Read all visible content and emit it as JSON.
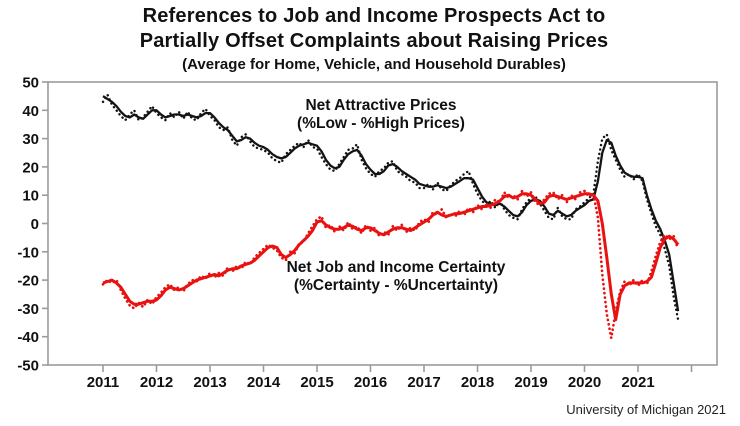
{
  "title": {
    "line1": "References to Job and Income Prospects Act to",
    "line2": "Partially Offset Complaints about Raising Prices",
    "line3": "(Average for Home, Vehicle, and Household Durables)"
  },
  "footer": {
    "source": "University of Michigan 2021"
  },
  "chart_data": {
    "type": "line",
    "title": "References to Job and Income Prospects Act to Partially Offset Complaints about Raising Prices",
    "subtitle": "(Average for Home, Vehicle, and Household Durables)",
    "source": "University of Michigan 2021",
    "x_start": "2011-01",
    "x_step_months": 1,
    "xticks": [
      "2011",
      "2012",
      "2013",
      "2014",
      "2015",
      "2016",
      "2017",
      "2018",
      "2019",
      "2020",
      "2021"
    ],
    "extra_unlabeled_tick_years": [
      2022
    ],
    "yticks": [
      50,
      40,
      30,
      20,
      10,
      0,
      -10,
      -20,
      -30,
      -40,
      -50
    ],
    "ylim": [
      -50,
      50
    ],
    "grid": false,
    "legend": "none",
    "axis_color": "#9b9b9b",
    "annotations": [
      {
        "lines": [
          "Net Attractive Prices",
          "(%Low - %High Prices)"
        ],
        "color": "#111111"
      },
      {
        "lines": [
          "Net Job and Income Certainty",
          "(%Certainty - %Uncertainty)"
        ],
        "color": "#111111"
      }
    ],
    "series": [
      {
        "name": "Net Attractive Prices (%Low - %High Prices) — monthly (dotted)",
        "color": "#141414",
        "style": "dotted",
        "width": 2.4,
        "values": [
          43,
          45.5,
          42,
          40,
          38,
          36.5,
          38.5,
          40,
          36.5,
          37.5,
          39.5,
          41.5,
          39,
          37.5,
          36.5,
          39,
          37.5,
          39.5,
          37,
          39.5,
          37,
          36.5,
          39,
          40.5,
          38,
          36.5,
          34,
          33,
          34,
          29.5,
          27.5,
          30.5,
          31.5,
          29,
          27,
          26.5,
          26,
          25,
          23,
          22,
          21.5,
          24.5,
          26,
          27.5,
          28.5,
          27,
          29.5,
          27,
          26.5,
          23.5,
          21,
          19,
          18.5,
          21,
          23.5,
          26,
          26.5,
          28,
          22.5,
          19.5,
          17.5,
          16.5,
          18.5,
          19.5,
          21.5,
          22,
          18.5,
          17.5,
          16.5,
          15,
          14.5,
          12.5,
          12.5,
          14,
          12,
          14.5,
          12,
          11.5,
          13.5,
          15,
          16,
          17.5,
          18.5,
          14,
          10.5,
          8,
          6.5,
          8,
          5.5,
          8,
          5,
          3,
          2,
          1.5,
          5,
          7.5,
          9,
          9.5,
          7,
          4.5,
          2,
          1.5,
          5.5,
          2.5,
          1.5,
          1.5,
          5,
          6,
          7.5,
          9,
          10.5,
          22,
          30,
          31.5,
          26,
          22.5,
          19,
          16.5,
          17.5,
          15.5,
          17.5,
          15,
          8.5,
          3.5,
          -1,
          -4,
          -9,
          -15,
          -26,
          -34
        ]
      },
      {
        "name": "Net Attractive Prices (%Low - %High Prices) — smoothed (solid)",
        "color": "#141414",
        "style": "solid",
        "width": 2.3,
        "values": [
          45,
          44,
          43,
          41.5,
          39.5,
          38,
          37.5,
          38.5,
          37.5,
          37,
          38.5,
          40,
          40,
          38.5,
          37.5,
          38,
          38.5,
          38.5,
          38,
          38.5,
          38,
          37.5,
          38,
          39,
          39,
          37.5,
          35.5,
          34,
          33,
          31,
          29,
          29.5,
          30.5,
          30,
          28.5,
          27.5,
          27,
          26,
          24.5,
          23.5,
          23,
          23.5,
          25,
          26.5,
          27.5,
          28,
          28.5,
          28,
          27.5,
          25.5,
          22.5,
          20.5,
          19.5,
          20,
          22.5,
          24.5,
          25.5,
          26,
          24,
          21,
          19,
          17.5,
          17.5,
          18.5,
          20.5,
          21,
          20,
          18.5,
          17.5,
          16.5,
          15.5,
          14,
          13.5,
          13,
          13,
          13.5,
          13,
          12.5,
          13,
          14,
          15,
          16,
          16,
          15.5,
          12.5,
          9.5,
          7.5,
          7,
          6.5,
          7,
          6,
          4.5,
          3,
          2.5,
          4,
          6.5,
          8,
          8.5,
          8,
          6,
          3.5,
          3,
          4.5,
          3.5,
          2.5,
          3,
          4.5,
          5.5,
          6.5,
          8,
          8.5,
          15,
          25,
          29.5,
          28.5,
          24,
          20.5,
          18,
          17,
          16.5,
          16.5,
          16,
          10,
          5,
          1,
          -2,
          -6,
          -11,
          -21,
          -31
        ]
      },
      {
        "name": "Net Job and Income Certainty (%Certainty - %Uncertainty) — monthly (dotted)",
        "color": "#ea1111",
        "style": "dotted",
        "width": 2.7,
        "values": [
          -21.5,
          -20,
          -21,
          -20,
          -23.5,
          -26.5,
          -29,
          -30,
          -28,
          -29.5,
          -27,
          -28.5,
          -26,
          -24.5,
          -22.5,
          -21.5,
          -23.5,
          -22.5,
          -24,
          -21.5,
          -20,
          -20.5,
          -18.5,
          -19.5,
          -17.5,
          -19,
          -17.5,
          -18.5,
          -15.5,
          -17,
          -15,
          -16,
          -13.5,
          -14.5,
          -12,
          -10.5,
          -9,
          -7.5,
          -8.5,
          -9.5,
          -12,
          -13,
          -10,
          -10.5,
          -7,
          -6.5,
          -3.5,
          -1,
          1.5,
          2.5,
          -1.5,
          -0.5,
          -3,
          -1,
          -2.5,
          0.5,
          -2,
          -1,
          -3.5,
          -0.5,
          -2.5,
          -1.5,
          -4.5,
          -3,
          -4,
          -1,
          -2.5,
          -0.5,
          -3,
          -1.5,
          -2.5,
          0.5,
          1.5,
          0.5,
          4,
          3,
          5,
          2,
          3.5,
          2.5,
          4.5,
          3,
          5.5,
          4,
          6.5,
          5,
          7,
          5.5,
          8.5,
          7.5,
          11,
          9,
          10,
          8.5,
          11.5,
          9.5,
          11,
          7.5,
          6.5,
          8.5,
          10.5,
          11,
          8.5,
          10,
          7.5,
          10,
          8.5,
          11,
          11.5,
          9.5,
          10.5,
          2,
          -18,
          -32,
          -40.5,
          -31,
          -24,
          -20.5,
          -22,
          -20,
          -22,
          -20,
          -21.5,
          -17,
          -11.5,
          -6.5,
          -4,
          -5.5,
          -4.5,
          -9
        ]
      },
      {
        "name": "Net Job and Income Certainty (%Certainty - %Uncertainty) — smoothed (solid)",
        "color": "#ea1111",
        "style": "solid",
        "width": 3,
        "values": [
          -21,
          -20.5,
          -20,
          -21,
          -22.5,
          -25,
          -27.5,
          -28.5,
          -28.5,
          -28,
          -27.5,
          -27.5,
          -27,
          -25.5,
          -23.5,
          -22.5,
          -23,
          -23.5,
          -23,
          -22,
          -21,
          -20,
          -19.5,
          -19,
          -18.5,
          -18,
          -18.5,
          -17.5,
          -16.5,
          -16,
          -16,
          -15,
          -14.5,
          -14,
          -13,
          -11.5,
          -10,
          -8.5,
          -8,
          -8.5,
          -11,
          -12,
          -11,
          -9.5,
          -7.5,
          -6,
          -4.5,
          -2.5,
          0.5,
          1,
          -0.5,
          -1.5,
          -2,
          -2,
          -1.5,
          -0.5,
          -1,
          -2,
          -2.5,
          -1.5,
          -1.5,
          -2.5,
          -3.5,
          -4,
          -3,
          -2,
          -1.5,
          -1.5,
          -2,
          -2.5,
          -1.5,
          -0.5,
          0.5,
          1.5,
          3,
          4,
          3,
          2.5,
          3,
          3.5,
          3.5,
          4,
          4.5,
          5,
          5.5,
          6,
          6,
          6.5,
          7,
          8,
          9.5,
          10,
          9,
          9.5,
          10.5,
          10.5,
          10,
          8.5,
          7,
          7.5,
          9.5,
          10,
          9.5,
          9,
          8.5,
          9,
          9.5,
          10,
          10.5,
          10.5,
          10,
          8,
          0,
          -12,
          -25,
          -34,
          -25,
          -22,
          -21,
          -21,
          -21,
          -21,
          -20.5,
          -19,
          -14,
          -8.5,
          -5.5,
          -4.5,
          -5.5,
          -7.5
        ]
      }
    ]
  }
}
